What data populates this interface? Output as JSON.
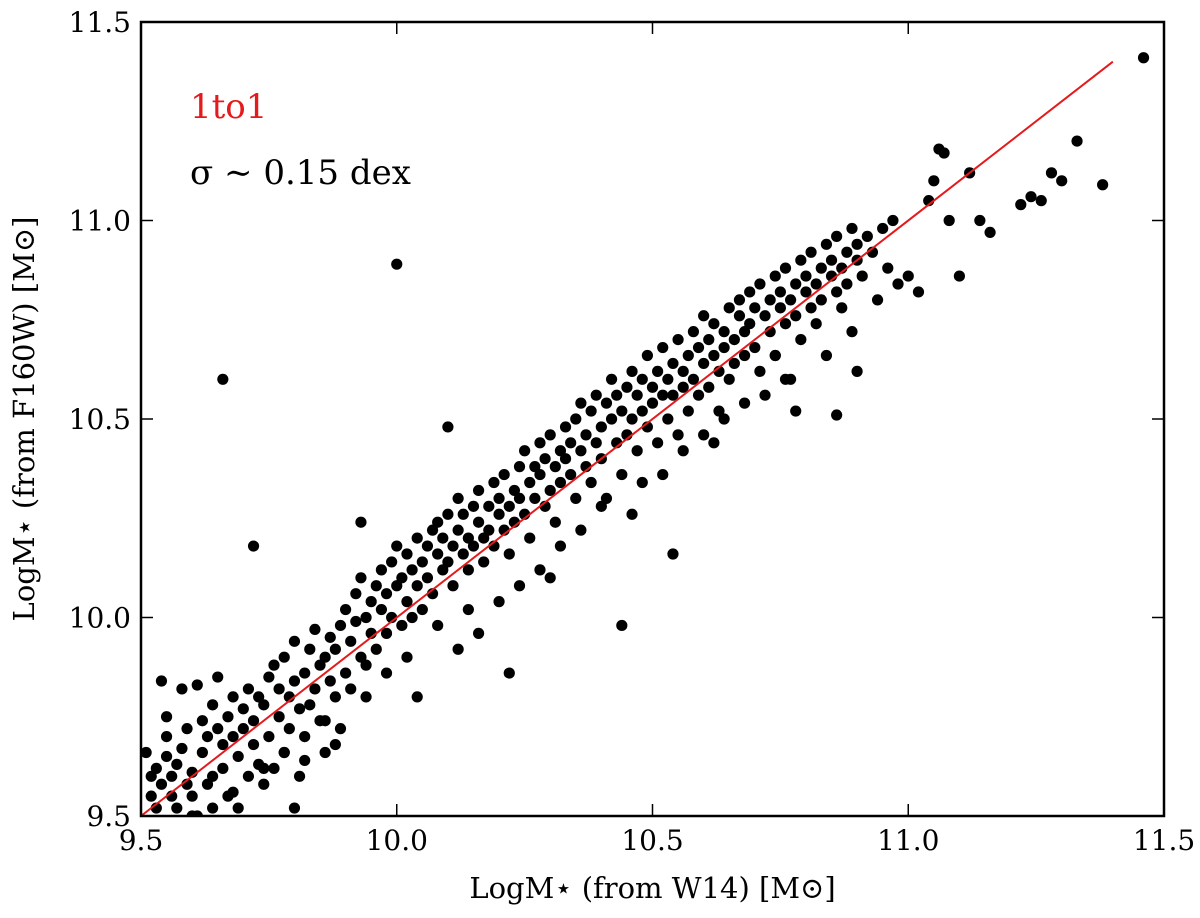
{
  "chart_data": {
    "type": "scatter",
    "xlabel": "LogM⋆ (from W14) [M⊙]",
    "ylabel": "LogM⋆ (from F160W) [M⊙]",
    "xlim": [
      9.5,
      11.5
    ],
    "ylim": [
      9.5,
      11.5
    ],
    "x_ticks": [
      "9.5",
      "10.0",
      "10.5",
      "11.0",
      "11.5"
    ],
    "y_ticks": [
      "9.5",
      "10.0",
      "10.5",
      "11.0",
      "11.5"
    ],
    "grid": false,
    "point_color": "#000000",
    "line_color": "#e41a1c",
    "reference_line": {
      "label": "1to1",
      "x": [
        9.5,
        11.4
      ],
      "y": [
        9.5,
        11.4
      ]
    },
    "annotations": [
      {
        "text": "1to1",
        "color": "#e41a1c"
      },
      {
        "text": "σ ∼ 0.15 dex",
        "color": "#000000"
      }
    ],
    "points": [
      [
        9.51,
        9.66
      ],
      [
        9.52,
        9.55
      ],
      [
        9.52,
        9.6
      ],
      [
        9.53,
        9.62
      ],
      [
        9.53,
        9.52
      ],
      [
        9.54,
        9.58
      ],
      [
        9.54,
        9.84
      ],
      [
        9.55,
        9.7
      ],
      [
        9.55,
        9.75
      ],
      [
        9.55,
        9.65
      ],
      [
        9.56,
        9.55
      ],
      [
        9.56,
        9.6
      ],
      [
        9.57,
        9.63
      ],
      [
        9.57,
        9.52
      ],
      [
        9.58,
        9.67
      ],
      [
        9.58,
        9.82
      ],
      [
        9.59,
        9.58
      ],
      [
        9.59,
        9.72
      ],
      [
        9.6,
        9.55
      ],
      [
        9.6,
        9.61
      ],
      [
        9.61,
        9.83
      ],
      [
        9.61,
        9.5
      ],
      [
        9.62,
        9.66
      ],
      [
        9.62,
        9.74
      ],
      [
        9.63,
        9.7
      ],
      [
        9.63,
        9.58
      ],
      [
        9.64,
        9.78
      ],
      [
        9.64,
        9.6
      ],
      [
        9.65,
        9.72
      ],
      [
        9.65,
        9.85
      ],
      [
        9.66,
        9.68
      ],
      [
        9.66,
        9.62
      ],
      [
        9.67,
        9.75
      ],
      [
        9.67,
        9.55
      ],
      [
        9.68,
        9.8
      ],
      [
        9.68,
        9.7
      ],
      [
        9.69,
        9.65
      ],
      [
        9.69,
        9.52
      ],
      [
        9.7,
        9.77
      ],
      [
        9.7,
        9.72
      ],
      [
        9.71,
        9.6
      ],
      [
        9.71,
        9.82
      ],
      [
        9.72,
        9.74
      ],
      [
        9.72,
        9.68
      ],
      [
        9.73,
        9.63
      ],
      [
        9.73,
        9.8
      ],
      [
        9.74,
        9.78
      ],
      [
        9.74,
        9.58
      ],
      [
        9.75,
        9.85
      ],
      [
        9.75,
        9.7
      ],
      [
        9.76,
        9.88
      ],
      [
        9.76,
        9.62
      ],
      [
        9.77,
        9.82
      ],
      [
        9.77,
        9.75
      ],
      [
        9.78,
        9.9
      ],
      [
        9.78,
        9.66
      ],
      [
        9.79,
        9.8
      ],
      [
        9.79,
        9.72
      ],
      [
        9.8,
        9.84
      ],
      [
        9.8,
        9.94
      ],
      [
        9.81,
        9.6
      ],
      [
        9.81,
        9.77
      ],
      [
        9.82,
        9.86
      ],
      [
        9.82,
        9.7
      ],
      [
        9.83,
        9.92
      ],
      [
        9.83,
        9.78
      ],
      [
        9.84,
        9.82
      ],
      [
        9.84,
        9.97
      ],
      [
        9.85,
        9.88
      ],
      [
        9.85,
        9.74
      ],
      [
        9.86,
        9.9
      ],
      [
        9.86,
        9.66
      ],
      [
        9.87,
        9.84
      ],
      [
        9.87,
        9.95
      ],
      [
        9.88,
        9.92
      ],
      [
        9.88,
        9.8
      ],
      [
        9.89,
        9.98
      ],
      [
        9.89,
        9.72
      ],
      [
        9.9,
        9.86
      ],
      [
        9.9,
        10.02
      ],
      [
        9.91,
        9.94
      ],
      [
        9.91,
        9.82
      ],
      [
        9.92,
        9.99
      ],
      [
        9.92,
        10.06
      ],
      [
        9.93,
        9.9
      ],
      [
        9.93,
        10.1
      ],
      [
        9.94,
        10.0
      ],
      [
        9.94,
        9.88
      ],
      [
        9.95,
        10.04
      ],
      [
        9.95,
        9.96
      ],
      [
        9.96,
        10.08
      ],
      [
        9.96,
        9.92
      ],
      [
        9.97,
        10.12
      ],
      [
        9.97,
        10.02
      ],
      [
        9.98,
        9.96
      ],
      [
        9.98,
        10.06
      ],
      [
        9.99,
        10.14
      ],
      [
        9.99,
        10.0
      ],
      [
        10.0,
        10.08
      ],
      [
        10.0,
        10.18
      ],
      [
        10.01,
        9.98
      ],
      [
        10.01,
        10.1
      ],
      [
        10.02,
        10.04
      ],
      [
        10.02,
        10.16
      ],
      [
        10.03,
        10.12
      ],
      [
        10.03,
        10.0
      ],
      [
        10.04,
        10.2
      ],
      [
        10.04,
        10.08
      ],
      [
        10.05,
        10.14
      ],
      [
        10.05,
        10.02
      ],
      [
        10.06,
        10.18
      ],
      [
        10.06,
        10.1
      ],
      [
        10.07,
        10.22
      ],
      [
        10.07,
        10.06
      ],
      [
        10.08,
        10.16
      ],
      [
        10.08,
        10.24
      ],
      [
        10.09,
        10.12
      ],
      [
        10.09,
        10.2
      ],
      [
        10.1,
        10.26
      ],
      [
        10.1,
        10.14
      ],
      [
        10.11,
        10.18
      ],
      [
        10.11,
        10.08
      ],
      [
        10.12,
        10.22
      ],
      [
        10.12,
        10.3
      ],
      [
        10.13,
        10.16
      ],
      [
        10.13,
        10.26
      ],
      [
        10.14,
        10.2
      ],
      [
        10.14,
        10.12
      ],
      [
        10.15,
        10.28
      ],
      [
        10.15,
        10.18
      ],
      [
        10.16,
        10.24
      ],
      [
        10.16,
        10.32
      ],
      [
        10.17,
        10.2
      ],
      [
        10.17,
        10.14
      ],
      [
        10.18,
        10.28
      ],
      [
        10.18,
        10.22
      ],
      [
        10.19,
        10.34
      ],
      [
        10.19,
        10.18
      ],
      [
        10.2,
        10.26
      ],
      [
        10.2,
        10.3
      ],
      [
        10.21,
        10.22
      ],
      [
        10.21,
        10.36
      ],
      [
        10.22,
        10.28
      ],
      [
        10.22,
        10.16
      ],
      [
        10.23,
        10.32
      ],
      [
        10.23,
        10.24
      ],
      [
        10.24,
        10.38
      ],
      [
        10.24,
        10.3
      ],
      [
        10.25,
        10.26
      ],
      [
        10.25,
        10.42
      ],
      [
        10.26,
        10.34
      ],
      [
        10.26,
        10.2
      ],
      [
        10.27,
        10.3
      ],
      [
        10.27,
        10.38
      ],
      [
        10.28,
        10.36
      ],
      [
        10.28,
        10.44
      ],
      [
        10.29,
        10.28
      ],
      [
        10.29,
        10.4
      ],
      [
        10.3,
        10.32
      ],
      [
        10.3,
        10.46
      ],
      [
        10.31,
        10.38
      ],
      [
        10.31,
        10.24
      ],
      [
        10.32,
        10.42
      ],
      [
        10.32,
        10.34
      ],
      [
        10.33,
        10.48
      ],
      [
        10.33,
        10.4
      ],
      [
        10.34,
        10.36
      ],
      [
        10.34,
        10.44
      ],
      [
        10.35,
        10.5
      ],
      [
        10.35,
        10.3
      ],
      [
        10.36,
        10.42
      ],
      [
        10.36,
        10.54
      ],
      [
        10.37,
        10.38
      ],
      [
        10.37,
        10.46
      ],
      [
        10.38,
        10.52
      ],
      [
        10.38,
        10.34
      ],
      [
        10.39,
        10.44
      ],
      [
        10.39,
        10.56
      ],
      [
        10.4,
        10.48
      ],
      [
        10.4,
        10.4
      ],
      [
        10.41,
        10.54
      ],
      [
        10.41,
        10.3
      ],
      [
        10.42,
        10.5
      ],
      [
        10.42,
        10.6
      ],
      [
        10.43,
        10.44
      ],
      [
        10.43,
        10.56
      ],
      [
        10.44,
        10.52
      ],
      [
        10.44,
        10.36
      ],
      [
        10.45,
        10.58
      ],
      [
        10.45,
        10.46
      ],
      [
        10.46,
        10.62
      ],
      [
        10.46,
        10.5
      ],
      [
        10.47,
        10.56
      ],
      [
        10.47,
        10.42
      ],
      [
        10.48,
        10.6
      ],
      [
        10.48,
        10.52
      ],
      [
        10.49,
        10.66
      ],
      [
        10.49,
        10.48
      ],
      [
        10.5,
        10.58
      ],
      [
        10.5,
        10.54
      ],
      [
        10.51,
        10.62
      ],
      [
        10.51,
        10.44
      ],
      [
        10.52,
        10.56
      ],
      [
        10.52,
        10.68
      ],
      [
        10.53,
        10.6
      ],
      [
        10.53,
        10.5
      ],
      [
        10.54,
        10.64
      ],
      [
        10.54,
        10.56
      ],
      [
        10.55,
        10.7
      ],
      [
        10.55,
        10.46
      ],
      [
        10.56,
        10.62
      ],
      [
        10.56,
        10.58
      ],
      [
        10.57,
        10.66
      ],
      [
        10.57,
        10.52
      ],
      [
        10.58,
        10.72
      ],
      [
        10.58,
        10.6
      ],
      [
        10.59,
        10.68
      ],
      [
        10.59,
        10.56
      ],
      [
        10.6,
        10.64
      ],
      [
        10.6,
        10.76
      ],
      [
        10.61,
        10.7
      ],
      [
        10.61,
        10.58
      ],
      [
        10.62,
        10.66
      ],
      [
        10.62,
        10.74
      ],
      [
        10.63,
        10.62
      ],
      [
        10.63,
        10.52
      ],
      [
        10.64,
        10.72
      ],
      [
        10.64,
        10.68
      ],
      [
        10.65,
        10.78
      ],
      [
        10.65,
        10.6
      ],
      [
        10.66,
        10.7
      ],
      [
        10.66,
        10.64
      ],
      [
        10.67,
        10.76
      ],
      [
        10.67,
        10.8
      ],
      [
        10.68,
        10.66
      ],
      [
        10.68,
        10.72
      ],
      [
        10.69,
        10.82
      ],
      [
        10.69,
        10.74
      ],
      [
        10.7,
        10.68
      ],
      [
        10.7,
        10.78
      ],
      [
        10.71,
        10.62
      ],
      [
        10.71,
        10.84
      ],
      [
        10.72,
        10.76
      ],
      [
        10.72,
        10.56
      ],
      [
        10.73,
        10.8
      ],
      [
        10.73,
        10.72
      ],
      [
        10.74,
        10.86
      ],
      [
        10.74,
        10.66
      ],
      [
        10.75,
        10.78
      ],
      [
        10.75,
        10.82
      ],
      [
        10.76,
        10.74
      ],
      [
        10.76,
        10.88
      ],
      [
        10.77,
        10.8
      ],
      [
        10.77,
        10.6
      ],
      [
        10.78,
        10.84
      ],
      [
        10.78,
        10.76
      ],
      [
        10.79,
        10.9
      ],
      [
        10.79,
        10.7
      ],
      [
        10.8,
        10.82
      ],
      [
        10.8,
        10.86
      ],
      [
        10.81,
        10.78
      ],
      [
        10.81,
        10.92
      ],
      [
        10.82,
        10.84
      ],
      [
        10.82,
        10.74
      ],
      [
        10.83,
        10.88
      ],
      [
        10.83,
        10.8
      ],
      [
        10.84,
        10.94
      ],
      [
        10.84,
        10.66
      ],
      [
        10.85,
        10.86
      ],
      [
        10.85,
        10.9
      ],
      [
        10.86,
        10.82
      ],
      [
        10.86,
        10.96
      ],
      [
        10.87,
        10.88
      ],
      [
        10.87,
        10.78
      ],
      [
        10.88,
        10.92
      ],
      [
        10.88,
        10.84
      ],
      [
        10.89,
        10.98
      ],
      [
        10.89,
        10.72
      ],
      [
        10.9,
        10.9
      ],
      [
        10.9,
        10.94
      ],
      [
        10.91,
        10.86
      ],
      [
        10.92,
        10.96
      ],
      [
        10.93,
        10.92
      ],
      [
        10.94,
        10.8
      ],
      [
        10.95,
        10.98
      ],
      [
        10.96,
        10.88
      ],
      [
        10.97,
        11.0
      ],
      [
        10.98,
        10.84
      ],
      [
        11.0,
        10.86
      ],
      [
        11.02,
        10.82
      ],
      [
        11.04,
        11.05
      ],
      [
        11.05,
        11.1
      ],
      [
        11.06,
        11.18
      ],
      [
        11.07,
        11.17
      ],
      [
        11.08,
        11.0
      ],
      [
        11.1,
        10.86
      ],
      [
        11.12,
        11.12
      ],
      [
        11.14,
        11.0
      ],
      [
        11.16,
        10.97
      ],
      [
        11.22,
        11.04
      ],
      [
        11.24,
        11.06
      ],
      [
        11.26,
        11.05
      ],
      [
        11.28,
        11.12
      ],
      [
        11.3,
        11.1
      ],
      [
        11.33,
        11.2
      ],
      [
        11.38,
        11.09
      ],
      [
        11.46,
        11.41
      ],
      [
        9.66,
        10.6
      ],
      [
        10.0,
        10.89
      ],
      [
        9.72,
        10.18
      ],
      [
        10.44,
        9.98
      ],
      [
        9.8,
        9.52
      ],
      [
        9.82,
        9.64
      ],
      [
        9.93,
        10.24
      ],
      [
        10.1,
        10.48
      ],
      [
        10.22,
        9.86
      ],
      [
        10.16,
        9.96
      ],
      [
        10.3,
        10.1
      ],
      [
        10.54,
        10.16
      ],
      [
        10.62,
        10.44
      ],
      [
        10.78,
        10.52
      ],
      [
        10.86,
        10.51
      ],
      [
        10.9,
        10.62
      ],
      [
        10.76,
        10.6
      ],
      [
        9.88,
        9.68
      ],
      [
        9.98,
        9.86
      ],
      [
        10.04,
        9.8
      ],
      [
        10.12,
        9.92
      ],
      [
        10.2,
        10.04
      ],
      [
        10.28,
        10.12
      ],
      [
        10.36,
        10.22
      ],
      [
        10.46,
        10.26
      ],
      [
        10.52,
        10.36
      ],
      [
        10.6,
        10.46
      ],
      [
        10.68,
        10.54
      ],
      [
        10.74,
        10.66
      ],
      [
        9.6,
        9.5
      ],
      [
        9.64,
        9.52
      ],
      [
        9.68,
        9.56
      ],
      [
        9.74,
        9.62
      ],
      [
        9.78,
        9.66
      ],
      [
        9.86,
        9.74
      ],
      [
        9.94,
        9.8
      ],
      [
        10.02,
        9.9
      ],
      [
        10.08,
        9.98
      ],
      [
        10.14,
        10.02
      ],
      [
        10.24,
        10.08
      ],
      [
        10.32,
        10.18
      ],
      [
        10.4,
        10.28
      ],
      [
        10.48,
        10.34
      ],
      [
        10.56,
        10.42
      ],
      [
        10.64,
        10.5
      ]
    ]
  }
}
